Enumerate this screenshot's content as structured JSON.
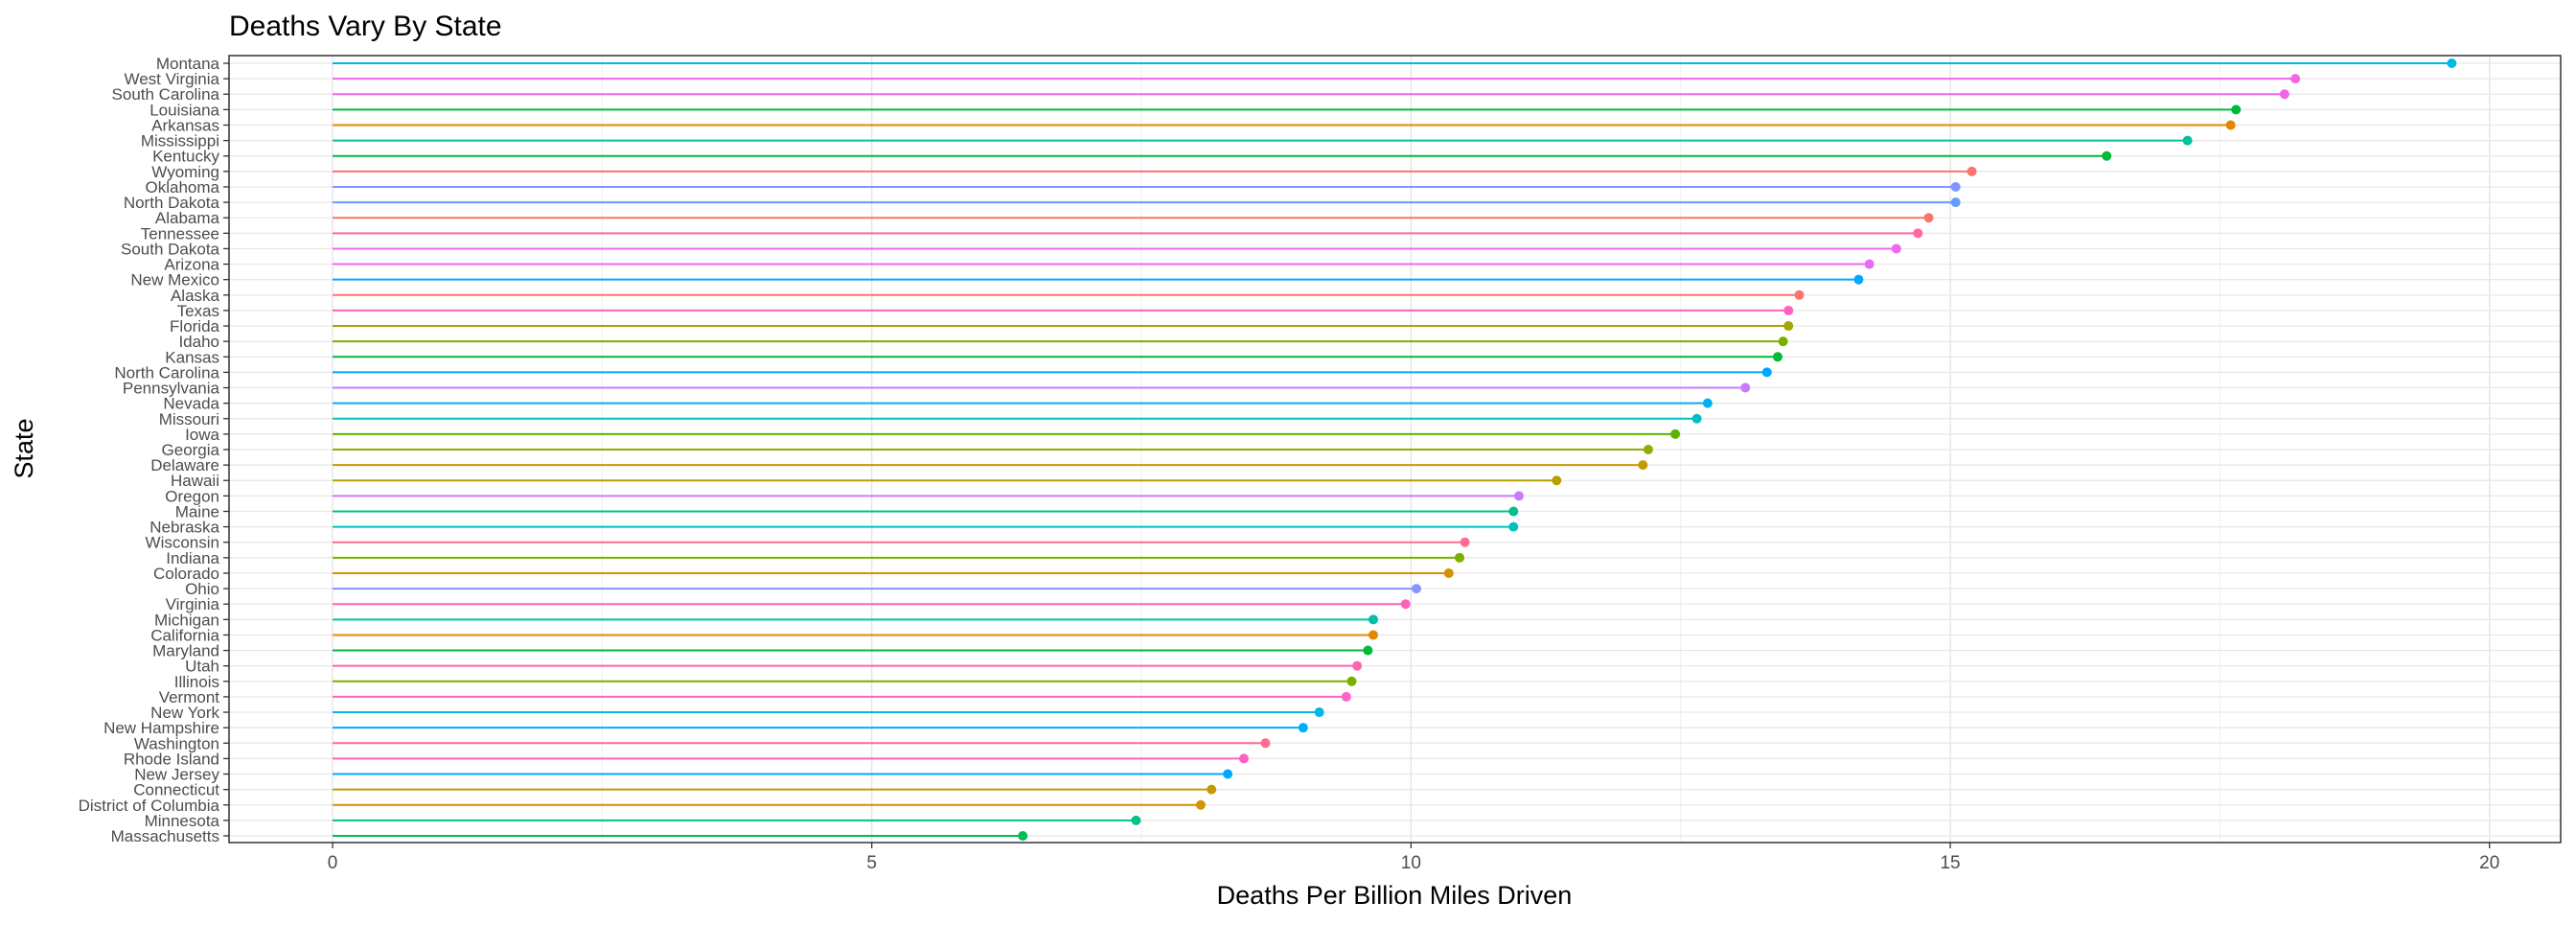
{
  "chart_data": {
    "type": "lollipop",
    "title": "Deaths Vary By State",
    "xlabel": "Deaths Per Billion Miles Driven",
    "ylabel": "State",
    "xlim": [
      -0.96,
      20.66
    ],
    "xticks": [
      0,
      5,
      10,
      15,
      20
    ],
    "grid": true,
    "legend": "none",
    "points": [
      {
        "state": "Montana",
        "value": 19.65,
        "color": "#00B9E3"
      },
      {
        "state": "West Virginia",
        "value": 18.2,
        "color": "#F564E3"
      },
      {
        "state": "South Carolina",
        "value": 18.1,
        "color": "#F066EA"
      },
      {
        "state": "Louisiana",
        "value": 17.65,
        "color": "#00BA38"
      },
      {
        "state": "Arkansas",
        "value": 17.6,
        "color": "#E58700"
      },
      {
        "state": "Mississippi",
        "value": 17.2,
        "color": "#00C19F"
      },
      {
        "state": "Kentucky",
        "value": 16.45,
        "color": "#00BA38"
      },
      {
        "state": "Wyoming",
        "value": 15.2,
        "color": "#F8766D"
      },
      {
        "state": "Oklahoma",
        "value": 15.05,
        "color": "#7F96FF"
      },
      {
        "state": "North Dakota",
        "value": 15.05,
        "color": "#619CFF"
      },
      {
        "state": "Alabama",
        "value": 14.8,
        "color": "#F8766D"
      },
      {
        "state": "Tennessee",
        "value": 14.7,
        "color": "#FF67A4"
      },
      {
        "state": "South Dakota",
        "value": 14.5,
        "color": "#EF67EB"
      },
      {
        "state": "Arizona",
        "value": 14.25,
        "color": "#E76BF3"
      },
      {
        "state": "New Mexico",
        "value": 14.15,
        "color": "#00A9FF"
      },
      {
        "state": "Alaska",
        "value": 13.6,
        "color": "#F8766D"
      },
      {
        "state": "Texas",
        "value": 13.5,
        "color": "#FF61C3"
      },
      {
        "state": "Florida",
        "value": 13.5,
        "color": "#A3A500"
      },
      {
        "state": "Idaho",
        "value": 13.45,
        "color": "#7CAE00"
      },
      {
        "state": "Kansas",
        "value": 13.4,
        "color": "#00BA38"
      },
      {
        "state": "North Carolina",
        "value": 13.3,
        "color": "#00A5FF"
      },
      {
        "state": "Pennsylvania",
        "value": 13.1,
        "color": "#C77CFF"
      },
      {
        "state": "Nevada",
        "value": 12.75,
        "color": "#00B0F6"
      },
      {
        "state": "Missouri",
        "value": 12.65,
        "color": "#00BFC4"
      },
      {
        "state": "Iowa",
        "value": 12.45,
        "color": "#5BB300"
      },
      {
        "state": "Georgia",
        "value": 12.2,
        "color": "#93AA00"
      },
      {
        "state": "Delaware",
        "value": 12.15,
        "color": "#C49A00"
      },
      {
        "state": "Hawaii",
        "value": 11.35,
        "color": "#B79F00"
      },
      {
        "state": "Oregon",
        "value": 11.0,
        "color": "#C77CFF"
      },
      {
        "state": "Maine",
        "value": 10.95,
        "color": "#00C08B"
      },
      {
        "state": "Nebraska",
        "value": 10.95,
        "color": "#00BFC4"
      },
      {
        "state": "Wisconsin",
        "value": 10.5,
        "color": "#FF6C91"
      },
      {
        "state": "Indiana",
        "value": 10.45,
        "color": "#7CAE00"
      },
      {
        "state": "Colorado",
        "value": 10.35,
        "color": "#D89000"
      },
      {
        "state": "Ohio",
        "value": 10.05,
        "color": "#8B93FF"
      },
      {
        "state": "Virginia",
        "value": 9.95,
        "color": "#FF62BC"
      },
      {
        "state": "Michigan",
        "value": 9.65,
        "color": "#00C1A7"
      },
      {
        "state": "California",
        "value": 9.65,
        "color": "#E58700"
      },
      {
        "state": "Maryland",
        "value": 9.6,
        "color": "#00BA38"
      },
      {
        "state": "Utah",
        "value": 9.5,
        "color": "#FF65AE"
      },
      {
        "state": "Illinois",
        "value": 9.45,
        "color": "#7CAE00"
      },
      {
        "state": "Vermont",
        "value": 9.4,
        "color": "#FF61C9"
      },
      {
        "state": "New York",
        "value": 9.15,
        "color": "#00B8E7"
      },
      {
        "state": "New Hampshire",
        "value": 9.0,
        "color": "#00ADFA"
      },
      {
        "state": "Washington",
        "value": 8.65,
        "color": "#FF6C91"
      },
      {
        "state": "Rhode Island",
        "value": 8.45,
        "color": "#FF61C3"
      },
      {
        "state": "New Jersey",
        "value": 8.3,
        "color": "#00A9FF"
      },
      {
        "state": "Connecticut",
        "value": 8.15,
        "color": "#C49A00"
      },
      {
        "state": "District of Columbia",
        "value": 8.05,
        "color": "#D39200"
      },
      {
        "state": "Minnesota",
        "value": 7.45,
        "color": "#00C08B"
      },
      {
        "state": "Massachusetts",
        "value": 6.4,
        "color": "#00BC56"
      }
    ]
  }
}
